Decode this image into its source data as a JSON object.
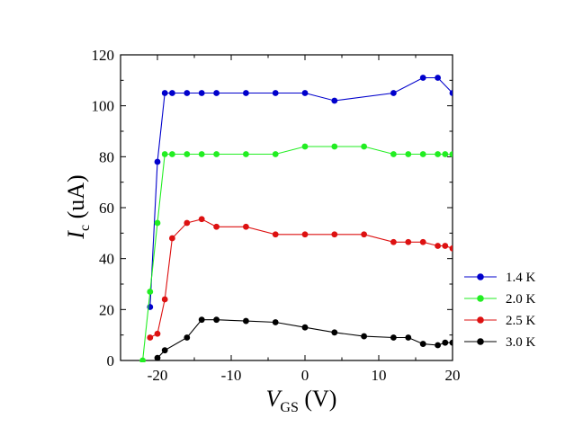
{
  "chart_data": {
    "type": "line",
    "title": "",
    "xlabel": {
      "main": "V",
      "sub": "GS",
      "unit": " (V)"
    },
    "ylabel": {
      "main": "I",
      "sub": "c",
      "unit": " (uA)"
    },
    "xlim": [
      -25,
      20
    ],
    "ylim": [
      0,
      120
    ],
    "xticks": [
      -20,
      -10,
      0,
      10,
      20
    ],
    "yticks": [
      0,
      20,
      40,
      60,
      80,
      100,
      120
    ],
    "grid": false,
    "legend_position": "bottom-right",
    "series": [
      {
        "name": "1.4 K",
        "color": "#0000cc",
        "points": [
          [
            -21,
            21
          ],
          [
            -20,
            78
          ],
          [
            -19,
            105
          ],
          [
            -18,
            105
          ],
          [
            -16,
            105
          ],
          [
            -14,
            105
          ],
          [
            -12,
            105
          ],
          [
            -8,
            105
          ],
          [
            -4,
            105
          ],
          [
            0,
            105
          ],
          [
            4,
            102
          ],
          [
            12,
            105
          ],
          [
            16,
            111
          ],
          [
            18,
            111
          ],
          [
            20,
            105
          ]
        ]
      },
      {
        "name": "2.0 K",
        "color": "#22ee22",
        "points": [
          [
            -22,
            0
          ],
          [
            -21,
            27
          ],
          [
            -20,
            54
          ],
          [
            -19,
            81
          ],
          [
            -18,
            81
          ],
          [
            -16,
            81
          ],
          [
            -14,
            81
          ],
          [
            -12,
            81
          ],
          [
            -8,
            81
          ],
          [
            -4,
            81
          ],
          [
            0,
            84
          ],
          [
            4,
            84
          ],
          [
            8,
            84
          ],
          [
            12,
            81
          ],
          [
            14,
            81
          ],
          [
            16,
            81
          ],
          [
            18,
            81
          ],
          [
            19,
            81
          ],
          [
            20,
            81
          ]
        ]
      },
      {
        "name": "2.5 K",
        "color": "#dd1111",
        "points": [
          [
            -21,
            9
          ],
          [
            -20,
            10.5
          ],
          [
            -19,
            24
          ],
          [
            -18,
            48
          ],
          [
            -16,
            54
          ],
          [
            -14,
            55.5
          ],
          [
            -12,
            52.5
          ],
          [
            -8,
            52.5
          ],
          [
            -4,
            49.5
          ],
          [
            0,
            49.5
          ],
          [
            4,
            49.5
          ],
          [
            8,
            49.5
          ],
          [
            12,
            46.5
          ],
          [
            14,
            46.5
          ],
          [
            16,
            46.5
          ],
          [
            18,
            45
          ],
          [
            19,
            45
          ],
          [
            20,
            44
          ]
        ]
      },
      {
        "name": "3.0 K",
        "color": "#000000",
        "points": [
          [
            -20,
            1
          ],
          [
            -19,
            4
          ],
          [
            -16,
            9
          ],
          [
            -14,
            16
          ],
          [
            -12,
            16
          ],
          [
            -8,
            15.5
          ],
          [
            -4,
            15
          ],
          [
            0,
            13
          ],
          [
            4,
            11
          ],
          [
            8,
            9.5
          ],
          [
            12,
            9
          ],
          [
            14,
            9
          ],
          [
            16,
            6.5
          ],
          [
            18,
            6
          ],
          [
            19,
            7
          ],
          [
            20,
            7
          ]
        ]
      }
    ]
  }
}
